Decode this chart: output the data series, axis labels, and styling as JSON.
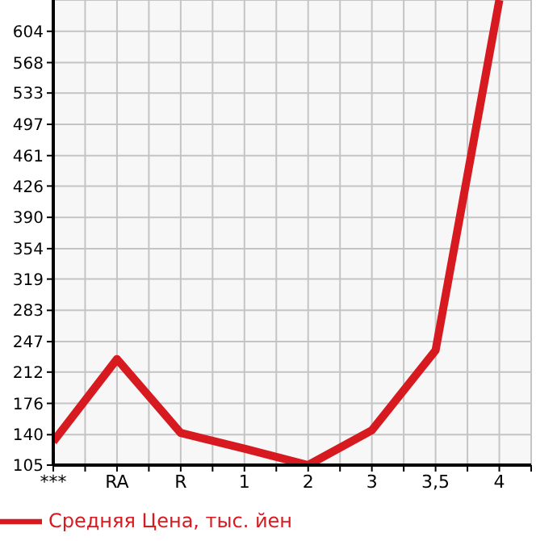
{
  "chart_data": {
    "type": "line",
    "categories": [
      "***",
      "RA",
      "R",
      "1",
      "2",
      "3",
      "3,5",
      "4"
    ],
    "series": [
      {
        "name": "Средняя Цена, тыс. йен",
        "color": "#d71920",
        "values": [
          132,
          227,
          142,
          124,
          105,
          145,
          237,
          640
        ]
      }
    ],
    "ylim": [
      105,
      640
    ],
    "yticks": [
      105,
      140,
      176,
      212,
      247,
      283,
      319,
      354,
      390,
      426,
      461,
      497,
      533,
      568,
      604
    ],
    "grid": true,
    "legend": "bottom left",
    "marker": "none",
    "line_style": "solid"
  }
}
